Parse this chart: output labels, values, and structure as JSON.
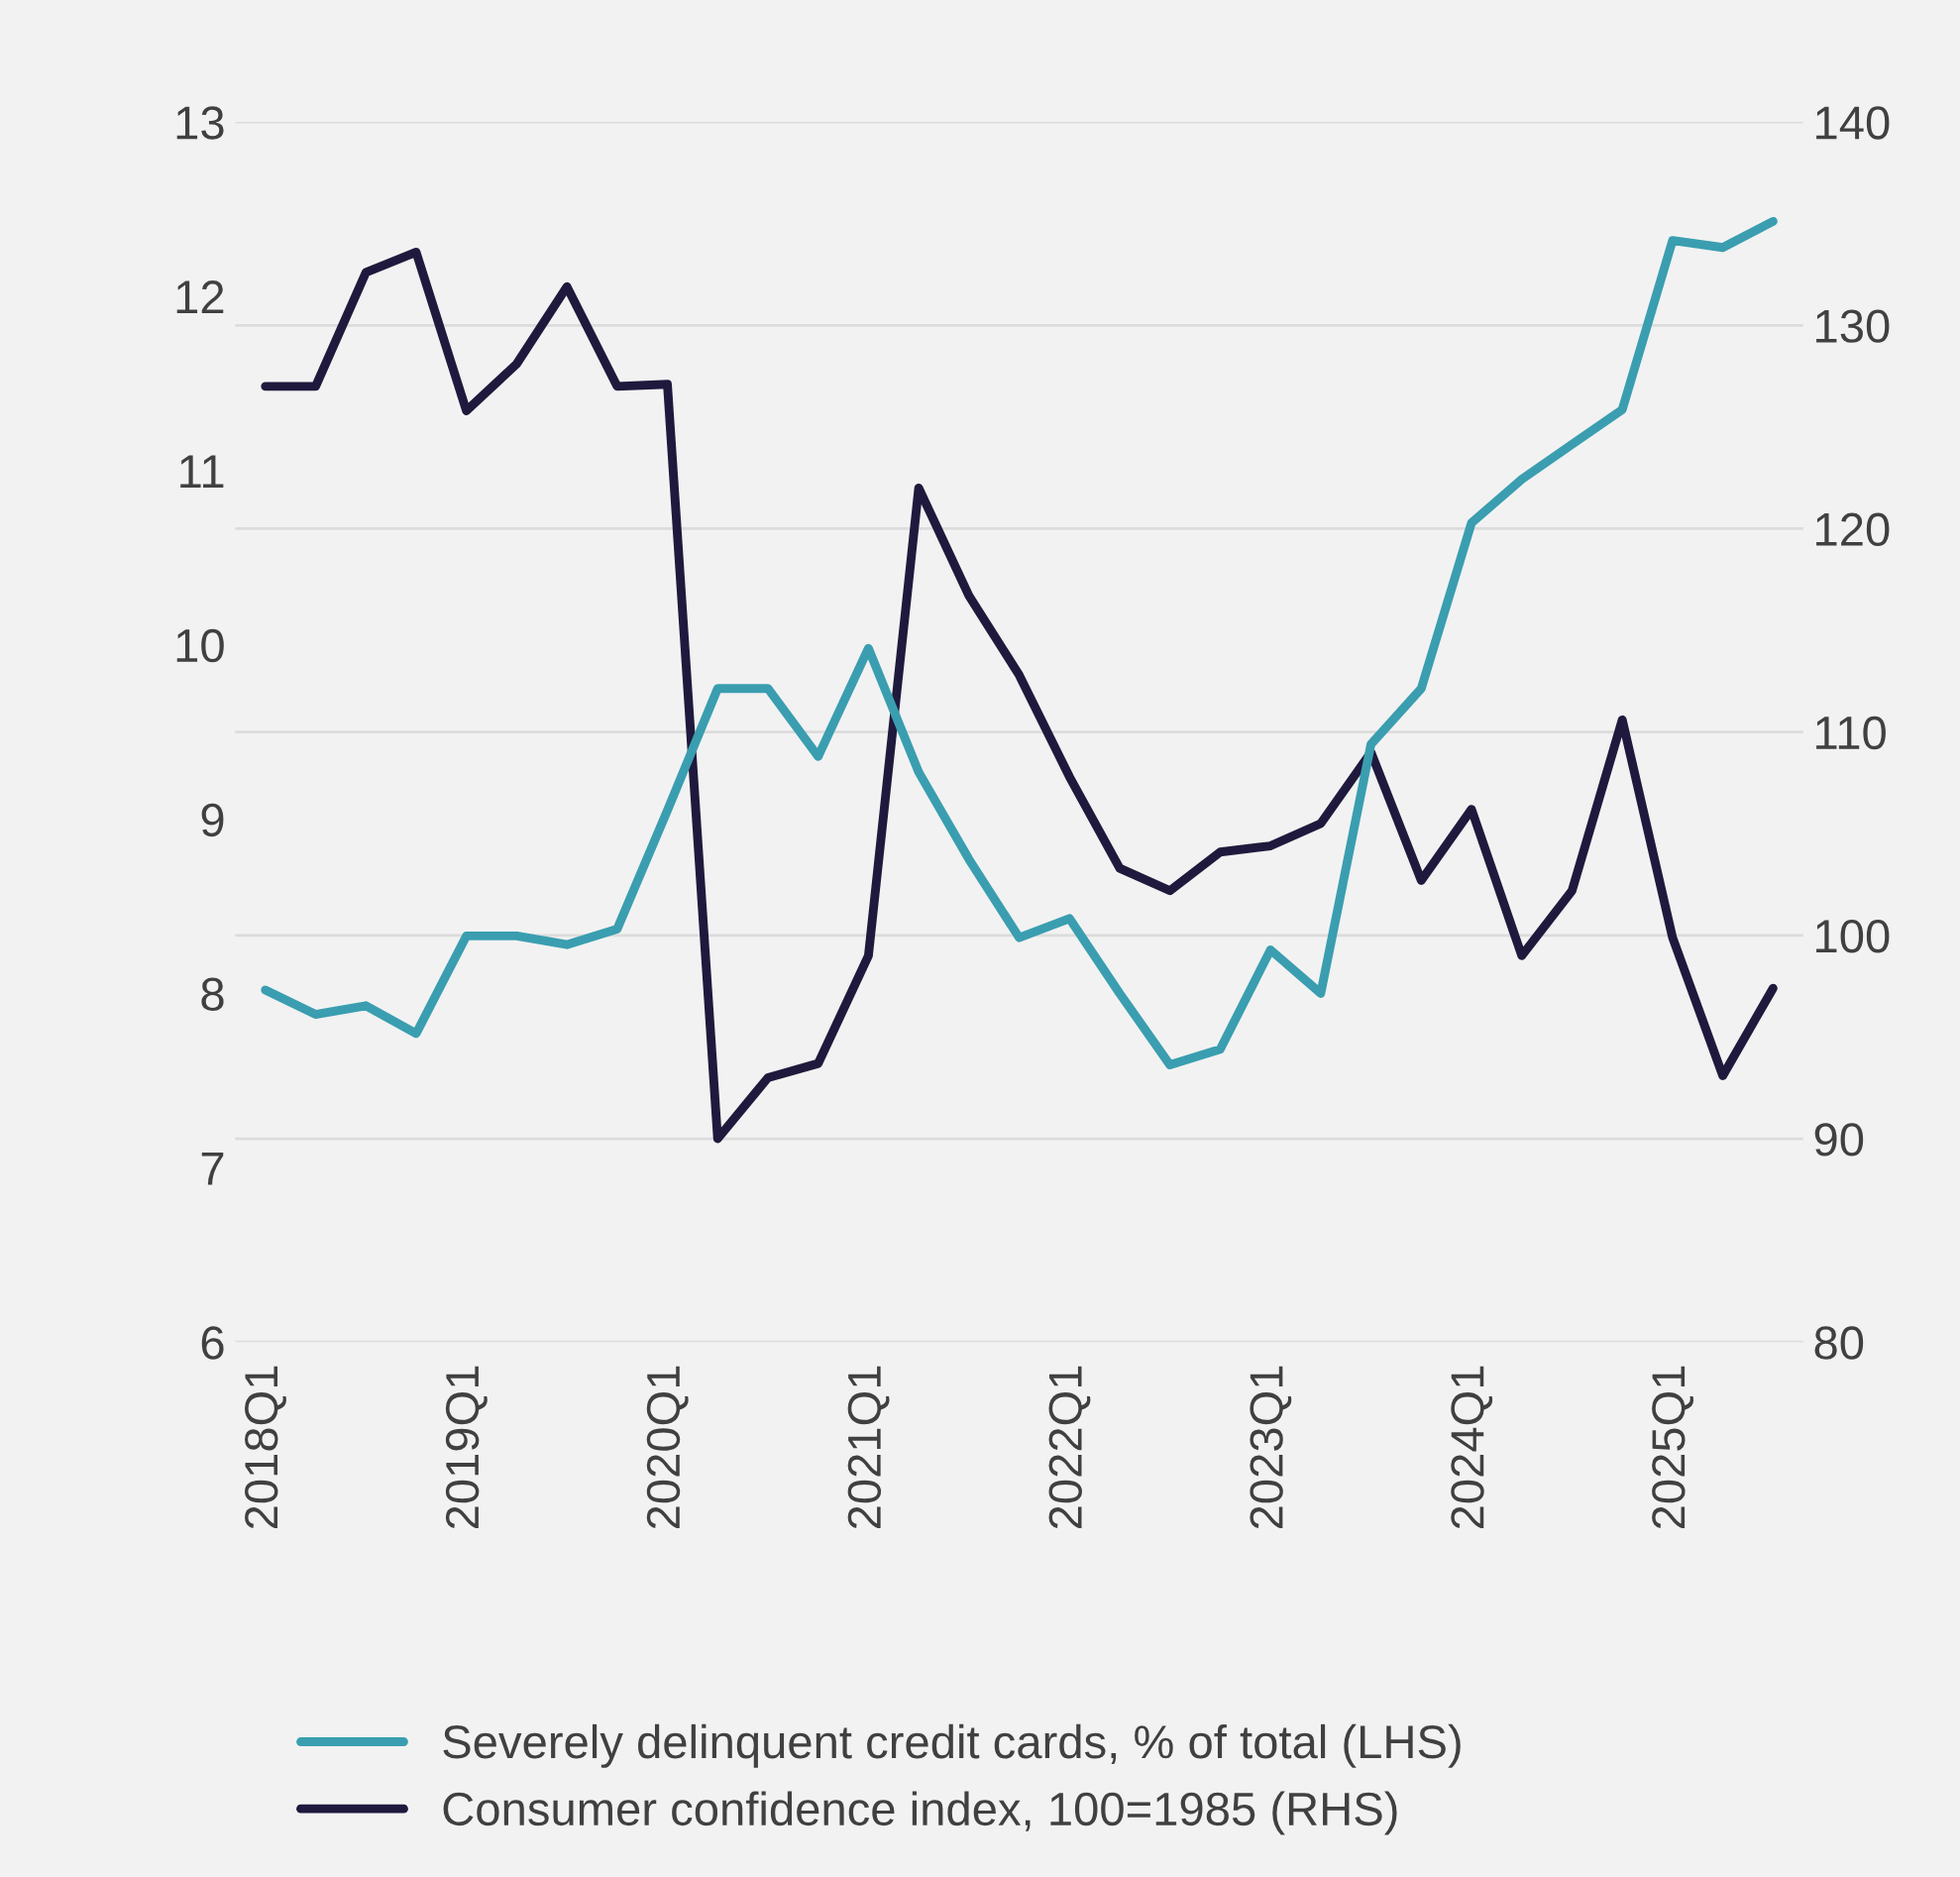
{
  "chart_data": {
    "type": "line",
    "categories": [
      "2018Q1",
      null,
      null,
      null,
      "2019Q1",
      null,
      null,
      null,
      "2020Q1",
      null,
      null,
      null,
      "2021Q1",
      null,
      null,
      null,
      "2022Q1",
      null,
      null,
      null,
      "2023Q1",
      null,
      null,
      null,
      "2024Q1",
      null,
      null,
      null,
      "2025Q1",
      null,
      null
    ],
    "series": [
      {
        "name": "Severely delinquent credit cards, % of total (LHS)",
        "color": "#3a9eb0",
        "values": [
          8.02,
          7.88,
          7.93,
          7.77,
          8.33,
          8.33,
          8.28,
          8.37,
          9.05,
          9.75,
          9.75,
          9.36,
          9.98,
          9.27,
          8.77,
          8.32,
          8.43,
          8.0,
          7.59,
          7.68,
          8.25,
          8.0,
          9.43,
          9.75,
          10.7,
          10.95,
          11.15,
          11.35,
          12.32,
          12.28,
          12.43
        ]
      },
      {
        "name": "Consumer confidence index, 100=1985 (RHS)",
        "color": "#1f1a3d",
        "axis": "y2",
        "values": [
          127,
          127,
          132.6,
          133.6,
          125.8,
          128.1,
          131.9,
          127,
          127.1,
          90,
          93,
          93.7,
          99,
          122,
          116.7,
          112.8,
          107.8,
          103.3,
          102.2,
          104.1,
          104.4,
          105.5,
          109,
          102.7,
          106.2,
          99,
          102.2,
          110.6,
          99.9,
          93.1,
          97.4
        ]
      }
    ],
    "ylim": [
      6,
      13
    ],
    "yticks": [
      6,
      7,
      8,
      9,
      10,
      11,
      12,
      13
    ],
    "y2lim": [
      80,
      140
    ],
    "y2ticks": [
      80,
      90,
      100,
      110,
      120,
      130,
      140
    ],
    "grid": "y",
    "legend": "bottom",
    "marker": "none",
    "line_style": "solid"
  }
}
